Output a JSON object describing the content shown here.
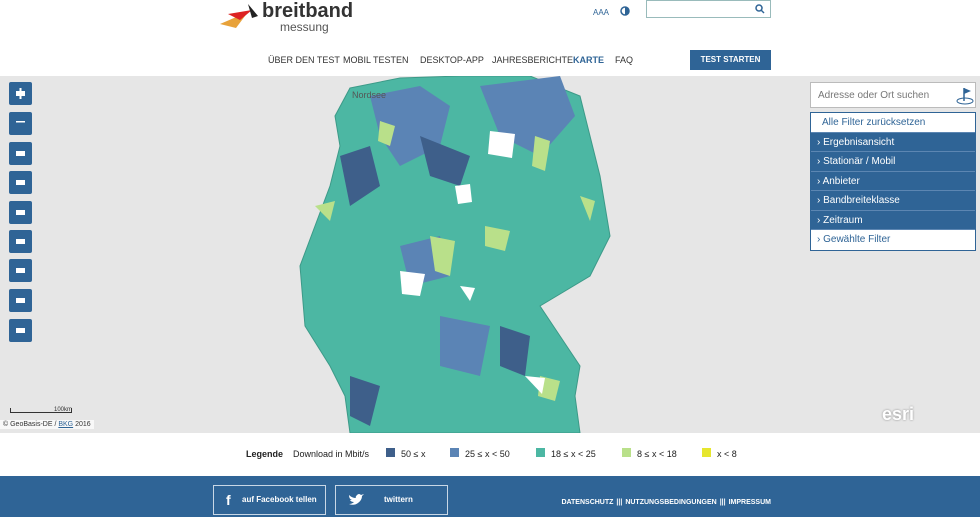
{
  "header": {
    "logo_top": "breitband",
    "logo_bottom": "messung",
    "font_size_control": "AAA"
  },
  "nav": {
    "items": [
      "ÜBER DEN TEST",
      "MOBIL TESTEN",
      "DESKTOP-APP",
      "JAHRESBERICHTE",
      "KARTE",
      "FAQ"
    ],
    "active": 4,
    "button": "TEST STARTEN"
  },
  "map": {
    "sea_label": "Nordsee",
    "scale": "100km",
    "attribution": "© GeoBasis-DE / ",
    "attribution_link": "BKG",
    "attribution_year": " 2016",
    "provider": "esri"
  },
  "panel": {
    "search_placeholder": "Adresse oder Ort suchen",
    "reset": "Alle Filter zurücksetzen",
    "filters": [
      "Ergebnisansicht",
      "Stationär / Mobil",
      "Anbieter",
      "Bandbreiteklasse",
      "Zeitraum"
    ],
    "selected": "Gewählte Filter"
  },
  "legend": {
    "title": "Legende",
    "unit": "Download in Mbit/s",
    "items": [
      {
        "label": "50 ≤ x",
        "color": "#3e5f8a"
      },
      {
        "label": "25 ≤ x < 50",
        "color": "#5b84b5"
      },
      {
        "label": "18 ≤ x < 25",
        "color": "#4cb7a3"
      },
      {
        "label": "8 ≤ x < 18",
        "color": "#b9e08a"
      },
      {
        "label": "x < 8",
        "color": "#e6e62e"
      }
    ]
  },
  "footer": {
    "facebook": "auf Facebook tellen",
    "twitter": "twittern",
    "links": [
      "DATENSCHUTZ",
      "NUTZUNGSBEDINGUNGEN",
      "IMPRESSUM"
    ],
    "separator": "|||"
  }
}
